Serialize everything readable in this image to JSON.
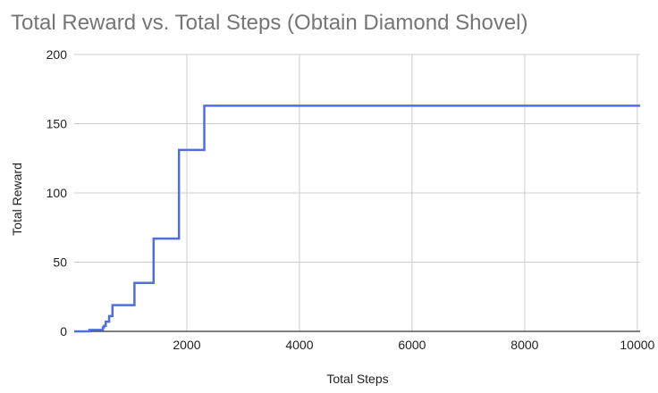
{
  "chart_data": {
    "type": "line",
    "step": true,
    "title": "Total Reward vs. Total Steps (Obtain Diamond Shovel)",
    "xlabel": "Total Steps",
    "ylabel": "Total Reward",
    "xlim": [
      0,
      10050
    ],
    "ylim": [
      0,
      200
    ],
    "xticks": [
      2000,
      4000,
      6000,
      8000,
      10000
    ],
    "yticks": [
      0,
      50,
      100,
      150,
      200
    ],
    "xtick_labels": [
      "2000",
      "4000",
      "6000",
      "8000",
      "10000"
    ],
    "ytick_labels": [
      "0",
      "50",
      "100",
      "150",
      "200"
    ],
    "grid": true,
    "legend": "none",
    "series": [
      {
        "color": "#4f6ee0",
        "x": [
          0,
          130,
          270,
          390,
          470,
          510,
          530,
          560,
          620,
          680,
          740,
          1070,
          1410,
          1860,
          2310,
          10050
        ],
        "y": [
          0,
          0,
          1,
          1,
          1,
          3,
          4,
          7,
          11,
          19,
          19,
          35,
          67,
          131,
          163,
          163
        ]
      }
    ]
  }
}
